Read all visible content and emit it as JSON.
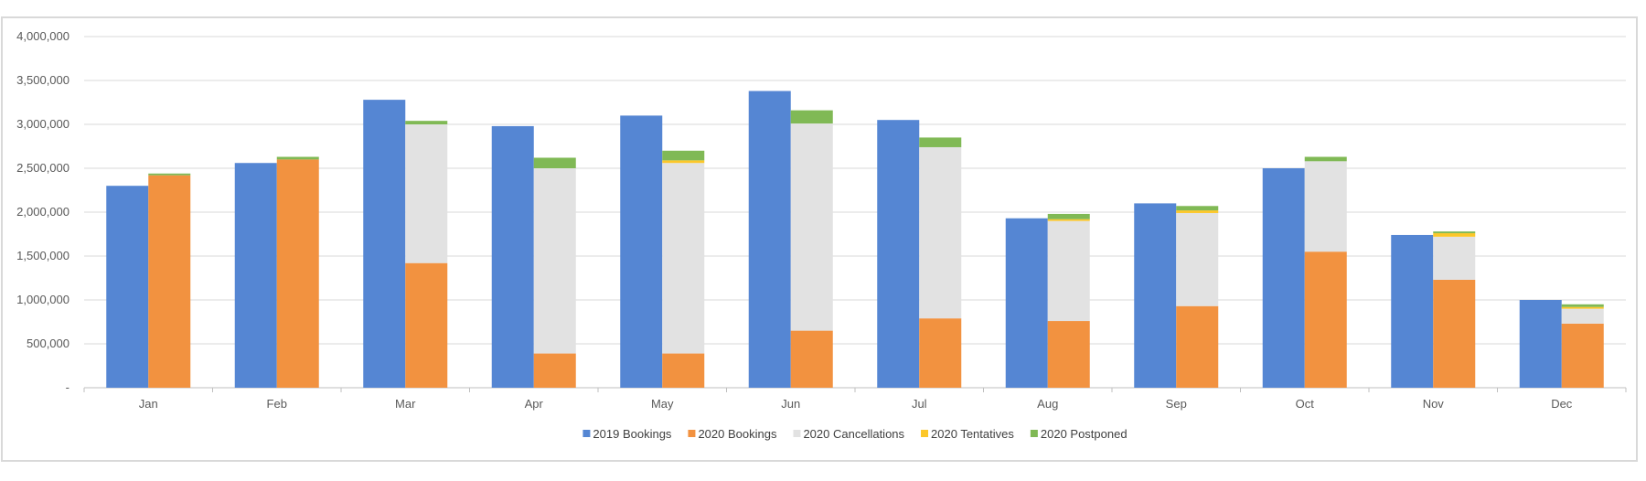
{
  "chart_data": {
    "type": "bar",
    "subtype": "grouped-stacked",
    "categories": [
      "Jan",
      "Feb",
      "Mar",
      "Apr",
      "May",
      "Jun",
      "Jul",
      "Aug",
      "Sep",
      "Oct",
      "Nov",
      "Dec"
    ],
    "ylim": [
      0,
      4000000
    ],
    "yticks": [
      0,
      500000,
      1000000,
      1500000,
      2000000,
      2500000,
      3000000,
      3500000,
      4000000
    ],
    "ytick_labels": [
      "-",
      "500,000",
      "1,000,000",
      "1,500,000",
      "2,000,000",
      "2,500,000",
      "3,000,000",
      "3,500,000",
      "4,000,000"
    ],
    "grid": true,
    "legend_position": "bottom",
    "series": [
      {
        "name": "2019 Bookings",
        "stack": "2019",
        "color": "#5586d3",
        "values": [
          2300000,
          2560000,
          3280000,
          2980000,
          3100000,
          3380000,
          3050000,
          1930000,
          2100000,
          2500000,
          1740000,
          1000000
        ]
      },
      {
        "name": "2020 Bookings",
        "stack": "2020",
        "color": "#f29240",
        "values": [
          2420000,
          2600000,
          1420000,
          390000,
          390000,
          650000,
          790000,
          760000,
          930000,
          1550000,
          1230000,
          730000
        ]
      },
      {
        "name": "2020 Cancellations",
        "stack": "2020",
        "color": "#e2e2e2",
        "values": [
          0,
          0,
          1580000,
          2110000,
          2170000,
          2360000,
          1950000,
          1140000,
          1060000,
          1030000,
          490000,
          170000
        ]
      },
      {
        "name": "2020 Tentatives",
        "stack": "2020",
        "color": "#fcc729",
        "values": [
          0,
          0,
          0,
          0,
          30000,
          0,
          0,
          20000,
          30000,
          0,
          40000,
          20000
        ]
      },
      {
        "name": "2020 Postponed",
        "stack": "2020",
        "color": "#80b955",
        "values": [
          20000,
          30000,
          40000,
          120000,
          110000,
          150000,
          110000,
          60000,
          50000,
          50000,
          20000,
          30000
        ]
      }
    ]
  }
}
